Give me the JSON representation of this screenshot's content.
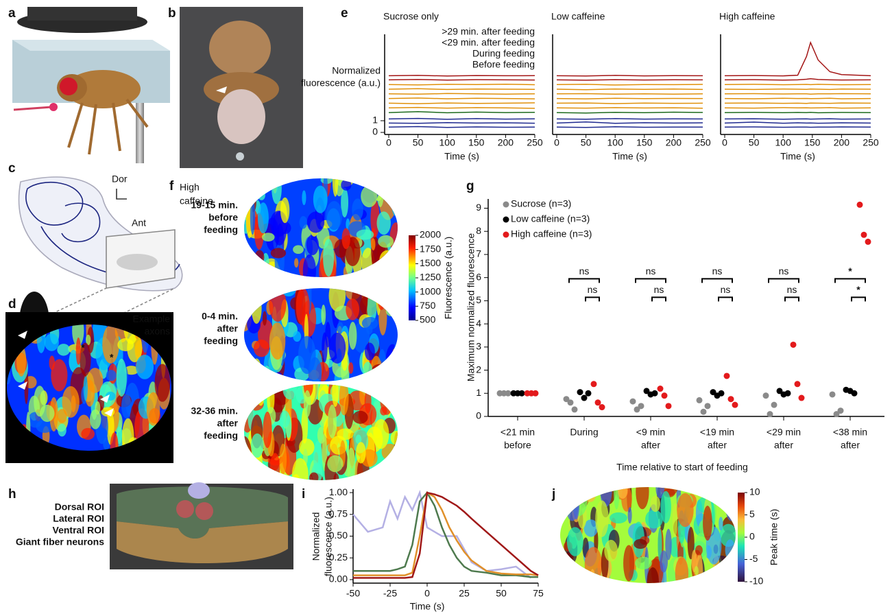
{
  "panel_labels": [
    "a",
    "b",
    "c",
    "d",
    "e",
    "f",
    "g",
    "h",
    "i",
    "j"
  ],
  "c": {
    "dor": "Dor",
    "ant": "Ant"
  },
  "d": {
    "title": [
      "Example",
      "axons"
    ],
    "asterisks": [
      "*",
      "*"
    ]
  },
  "e": {
    "y_label": [
      "Normalized",
      "fluorescence (a.u.)"
    ],
    "x_label": "Time (s)",
    "legend": [
      {
        "name": ">29 min. after feeding",
        "color": "#a31515"
      },
      {
        "name": "<29 min. after feeding",
        "color": "#e0900a"
      },
      {
        "name": "During feeding",
        "color": "#1d6b1d"
      },
      {
        "name": "Before feeding",
        "color": "#1f2a90"
      }
    ],
    "ylim": [
      0,
      8.4
    ],
    "yticks": [
      0,
      1
    ],
    "xlim": [
      0,
      250
    ],
    "xticks": [
      0,
      50,
      100,
      150,
      200,
      250
    ],
    "panels": [
      {
        "type": "line",
        "title": "Sucrose only",
        "x": [
          0,
          50,
          100,
          150,
          200,
          250
        ],
        "groups": [
          [
            [
              4.5,
              4.53,
              4.48,
              4.52,
              4.5,
              4.49
            ],
            [
              4.85,
              4.88,
              4.83,
              4.87,
              4.85,
              4.86
            ]
          ],
          [
            [
              4.1,
              4.07,
              4.12,
              4.1,
              4.13,
              4.08
            ],
            [
              3.7,
              3.74,
              3.68,
              3.72,
              3.7,
              3.69
            ],
            [
              3.3,
              3.27,
              3.33,
              3.3,
              3.28,
              3.31
            ],
            [
              2.9,
              2.94,
              2.88,
              2.92,
              2.9,
              2.87
            ],
            [
              2.5,
              2.46,
              2.52,
              2.48,
              2.5,
              2.53
            ],
            [
              2.1,
              2.14,
              2.08,
              2.12,
              2.1,
              2.06
            ]
          ],
          [
            [
              1.7,
              1.78,
              1.68,
              1.74,
              1.7,
              1.72
            ]
          ],
          [
            [
              1.15,
              1.2,
              1.12,
              1.18,
              1.14,
              1.16
            ],
            [
              0.8,
              0.78,
              0.84,
              0.8,
              0.82,
              0.79
            ],
            [
              0.45,
              0.5,
              0.42,
              0.47,
              0.44,
              0.46
            ]
          ]
        ]
      },
      {
        "type": "line",
        "title": "Low caffeine",
        "x": [
          0,
          50,
          100,
          150,
          200,
          250
        ],
        "groups": [
          [
            [
              4.5,
              4.47,
              4.52,
              4.49,
              4.51,
              4.5
            ],
            [
              4.85,
              4.83,
              4.88,
              4.84,
              4.86,
              4.85
            ]
          ],
          [
            [
              4.1,
              4.12,
              4.06,
              4.1,
              4.09,
              4.11
            ],
            [
              3.7,
              3.66,
              3.72,
              3.69,
              3.71,
              3.68
            ],
            [
              3.3,
              3.32,
              3.28,
              3.31,
              3.27,
              3.3
            ],
            [
              2.9,
              2.87,
              2.92,
              2.89,
              2.91,
              2.9
            ],
            [
              2.5,
              2.52,
              2.47,
              2.51,
              2.49,
              2.5
            ],
            [
              2.1,
              2.08,
              2.12,
              2.09,
              2.11,
              2.07
            ]
          ],
          [
            [
              1.7,
              1.66,
              1.72,
              1.69,
              1.73,
              1.71
            ]
          ],
          [
            [
              1.15,
              1.13,
              1.18,
              1.14,
              1.16,
              1.15
            ],
            [
              0.8,
              0.9,
              0.78,
              0.83,
              0.8,
              0.82
            ],
            [
              0.45,
              0.43,
              0.48,
              0.44,
              0.46,
              0.45
            ]
          ]
        ]
      },
      {
        "type": "line",
        "title": "High caffeine",
        "x": [
          0,
          50,
          100,
          125,
          140,
          147,
          160,
          180,
          200,
          250
        ],
        "groups": [
          [
            [
              4.5,
              4.52,
              4.48,
              4.5,
              4.55,
              4.6,
              4.53,
              4.5,
              4.49,
              4.5
            ],
            [
              4.85,
              4.87,
              4.84,
              4.9,
              6.5,
              7.7,
              6.2,
              5.2,
              4.95,
              4.85
            ]
          ],
          [
            [
              4.1,
              4.12,
              4.08,
              4.1,
              4.11,
              4.09,
              4.12,
              4.1,
              4.08,
              4.1
            ],
            [
              3.7,
              3.68,
              3.72,
              3.7,
              3.69,
              3.71,
              3.7,
              3.68,
              3.72,
              3.7
            ],
            [
              3.3,
              3.32,
              3.29,
              3.31,
              3.3,
              3.28,
              3.31,
              3.3,
              3.32,
              3.3
            ],
            [
              2.9,
              2.88,
              2.92,
              2.9,
              2.91,
              2.89,
              2.9,
              2.92,
              2.88,
              2.9
            ],
            [
              2.5,
              2.52,
              2.49,
              2.5,
              2.48,
              2.51,
              2.5,
              2.49,
              2.52,
              2.5
            ],
            [
              2.1,
              2.08,
              2.12,
              2.1,
              2.11,
              2.09,
              2.1,
              2.12,
              2.08,
              2.1
            ]
          ],
          [
            [
              1.7,
              1.72,
              1.69,
              1.71,
              1.7,
              1.72,
              1.68,
              1.7,
              1.71,
              1.7
            ]
          ],
          [
            [
              1.15,
              1.17,
              1.13,
              1.15,
              1.16,
              1.14,
              1.15,
              1.17,
              1.14,
              1.15
            ],
            [
              0.8,
              0.88,
              0.79,
              0.82,
              0.8,
              0.81,
              0.79,
              0.8,
              0.82,
              0.8
            ],
            [
              0.45,
              0.47,
              0.44,
              0.46,
              0.45,
              0.44,
              0.46,
              0.45,
              0.47,
              0.45
            ]
          ]
        ]
      }
    ]
  },
  "f": {
    "title": [
      "High",
      "caffeine"
    ],
    "conditions": [
      {
        "lines": [
          "19-15 min.",
          "before",
          "feeding"
        ],
        "color": "#2a3590"
      },
      {
        "lines": [
          "0-4 min.",
          "after",
          "feeding"
        ],
        "color": "#f0a020"
      },
      {
        "lines": [
          "32-36 min.",
          "after",
          "feeding"
        ],
        "color": "#b02a1a"
      }
    ],
    "colorbar_label": "Fluorescence (a.u.)",
    "clim": [
      500,
      2000
    ],
    "cticks": [
      500,
      750,
      1000,
      1250,
      1500,
      1750,
      2000
    ]
  },
  "g": {
    "type": "scatter",
    "y_label": "Maximum normalized fluorescence",
    "x_label": "Time relative to start of feeding",
    "categories": [
      [
        "<21 min",
        "before"
      ],
      [
        "During"
      ],
      [
        "<9 min",
        "after"
      ],
      [
        "<19 min",
        "after"
      ],
      [
        "<29 min",
        "after"
      ],
      [
        "<38 min",
        "after"
      ]
    ],
    "ylim": [
      0,
      9.4
    ],
    "yticks": [
      0,
      1,
      2,
      3,
      4,
      5,
      6,
      7,
      8,
      9
    ],
    "series": [
      {
        "name": "Sucrose (n=3)",
        "color": "#8a8a8a",
        "values": [
          [
            1,
            1,
            1
          ],
          [
            0.75,
            0.6,
            0.3
          ],
          [
            0.65,
            0.3,
            0.45
          ],
          [
            0.7,
            0.2,
            0.45
          ],
          [
            0.9,
            0.1,
            0.5
          ],
          [
            0.95,
            0.1,
            0.25
          ]
        ]
      },
      {
        "name": "Low caffeine (n=3)",
        "color": "#000000",
        "values": [
          [
            1,
            1,
            1
          ],
          [
            1.05,
            0.8,
            1.0
          ],
          [
            1.1,
            0.95,
            1.0
          ],
          [
            1.05,
            0.9,
            1.0
          ],
          [
            1.1,
            0.95,
            1.0
          ],
          [
            1.15,
            1.1,
            1.0
          ]
        ]
      },
      {
        "name": "High caffeine (n=3)",
        "color": "#e31a1c",
        "values": [
          [
            1,
            1,
            1
          ],
          [
            1.4,
            0.6,
            0.4
          ],
          [
            1.2,
            0.9,
            0.45
          ],
          [
            1.75,
            0.75,
            0.5
          ],
          [
            3.1,
            1.4,
            0.8
          ],
          [
            9.15,
            7.85,
            7.55
          ]
        ]
      }
    ],
    "comparisons": [
      null,
      [
        "ns",
        "ns"
      ],
      [
        "ns",
        "ns"
      ],
      [
        "ns",
        "ns"
      ],
      [
        "ns",
        "ns"
      ],
      [
        "*",
        "*"
      ]
    ]
  },
  "h": {
    "rois": [
      {
        "label": "Dorsal ROI",
        "color": "#b4b0e4"
      },
      {
        "label": "Lateral ROI",
        "color": "#4e7a4e"
      },
      {
        "label": "Ventral ROI",
        "color": "#d88c2c"
      },
      {
        "label": "Giant fiber neurons",
        "color": "#a32020"
      }
    ]
  },
  "i": {
    "type": "line",
    "y_label": [
      "Normalized",
      "fluorescence (a.u.)"
    ],
    "x_label": "Time (s)",
    "xlim": [
      -50,
      75
    ],
    "xticks": [
      -50,
      -25,
      0,
      25,
      50,
      75
    ],
    "ylim": [
      -0.04,
      1.04
    ],
    "yticks": [
      {
        "value": 0,
        "label": "0.00"
      },
      {
        "value": 0.25,
        "label": "0.25"
      },
      {
        "value": 0.5,
        "label": "0.50"
      },
      {
        "value": 0.75,
        "label": "0.75"
      },
      {
        "value": 1,
        "label": "1.00"
      }
    ],
    "x": [
      -50,
      -40,
      -30,
      -25,
      -20,
      -15,
      -10,
      -5,
      0,
      5,
      10,
      15,
      20,
      25,
      30,
      40,
      50,
      60,
      70,
      75
    ],
    "series": [
      {
        "color": "#b4b0e4",
        "values": [
          0.75,
          0.55,
          0.6,
          0.9,
          0.7,
          0.95,
          0.8,
          1.0,
          0.6,
          0.55,
          0.5,
          0.5,
          0.5,
          0.35,
          0.2,
          0.1,
          0.12,
          0.15,
          0.02,
          null
        ]
      },
      {
        "color": "#4e7a4e",
        "values": [
          0.1,
          0.1,
          0.1,
          0.1,
          0.12,
          0.15,
          0.4,
          0.9,
          1.0,
          0.85,
          0.6,
          0.4,
          0.25,
          0.15,
          0.1,
          0.08,
          0.05,
          0.05,
          0.03,
          0.03
        ]
      },
      {
        "color": "#e0902a",
        "values": [
          0.05,
          0.05,
          0.05,
          0.05,
          0.05,
          0.05,
          0.08,
          0.5,
          1.0,
          0.95,
          0.8,
          0.6,
          0.45,
          0.32,
          0.22,
          0.1,
          0.07,
          0.06,
          0.06,
          0.05
        ]
      },
      {
        "color": "#a01818",
        "values": [
          0.02,
          0.02,
          0.02,
          0.02,
          0.02,
          0.02,
          0.03,
          0.3,
          1.0,
          0.98,
          0.95,
          0.9,
          0.85,
          0.78,
          0.7,
          0.55,
          0.4,
          0.25,
          0.1,
          0.05
        ]
      }
    ]
  },
  "j": {
    "colorbar_label": "Peak time (s)",
    "clim": [
      -10,
      10
    ],
    "cticks": [
      -10,
      -5,
      0,
      5,
      10
    ]
  }
}
